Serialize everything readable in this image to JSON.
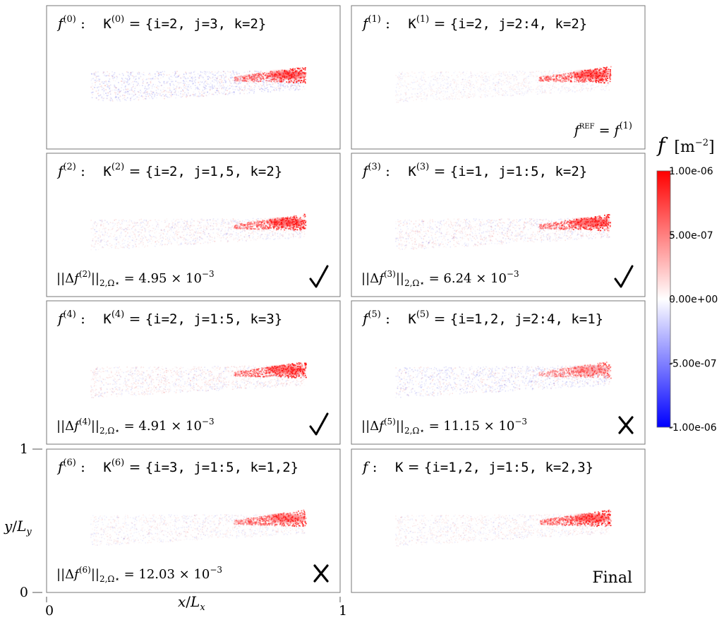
{
  "chart_data": {
    "type": "heatmap",
    "grid": [
      4,
      2
    ],
    "panels": [
      {
        "name": "f^(0)",
        "lhs": "f",
        "sup": "(0)",
        "kname": "K",
        "ksup": "(0)",
        "set": "{i=2, j=3, k=2}",
        "norm": "",
        "verdict": "",
        "note": "",
        "tail_intensity": 0.95,
        "body_intensity": 0.55,
        "body_bias": -0.25
      },
      {
        "name": "f^(1)",
        "lhs": "f",
        "sup": "(1)",
        "kname": "K",
        "ksup": "(1)",
        "set": "{i=2, j=2:4, k=2}",
        "norm": "",
        "verdict": "",
        "note": "f^REF = f^(1)",
        "tail_intensity": 1.0,
        "body_intensity": 0.25,
        "body_bias": 0.0
      },
      {
        "name": "f^(2)",
        "lhs": "f",
        "sup": "(2)",
        "kname": "K",
        "ksup": "(2)",
        "set": "{i=2, j=1,5, k=2}",
        "norm": "||Δf^(2)||_{2,Ω⋆} = 4.95 × 10^-3",
        "norm_sup": "(2)",
        "norm_val": "4.95",
        "verdict": "check",
        "note": "",
        "tail_intensity": 1.0,
        "body_intensity": 0.35,
        "body_bias": 0.1
      },
      {
        "name": "f^(3)",
        "lhs": "f",
        "sup": "(3)",
        "kname": "K",
        "ksup": "(3)",
        "set": "{i=1, j=1:5, k=2}",
        "norm": "||Δf^(3)||_{2,Ω⋆} = 6.24 × 10^-3",
        "norm_sup": "(3)",
        "norm_val": "6.24",
        "verdict": "check",
        "note": "",
        "tail_intensity": 1.0,
        "body_intensity": 0.4,
        "body_bias": 0.1
      },
      {
        "name": "f^(4)",
        "lhs": "f",
        "sup": "(4)",
        "kname": "K",
        "ksup": "(4)",
        "set": "{i=2, j=1:5, k=3}",
        "norm": "||Δf^(4)||_{2,Ω⋆} = 4.91 × 10^-3",
        "norm_sup": "(4)",
        "norm_val": "4.91",
        "verdict": "check",
        "note": "",
        "tail_intensity": 1.0,
        "body_intensity": 0.4,
        "body_bias": 0.15
      },
      {
        "name": "f^(5)",
        "lhs": "f",
        "sup": "(5)",
        "kname": "K",
        "ksup": "(5)",
        "set": "{i=1,2, j=2:4, k=1}",
        "norm": "||Δf^(5)||_{2,Ω⋆} = 11.15 × 10^-3",
        "norm_sup": "(5)",
        "norm_val": "11.15",
        "verdict": "cross",
        "note": "",
        "tail_intensity": 0.6,
        "body_intensity": 0.45,
        "body_bias": -0.2
      },
      {
        "name": "f^(6)",
        "lhs": "f",
        "sup": "(6)",
        "kname": "K",
        "ksup": "(6)",
        "set": "{i=3, j=1:5, k=1,2}",
        "norm": "||Δf^(6)||_{2,Ω⋆} = 12.03 × 10^-3",
        "norm_sup": "(6)",
        "norm_val": "12.03",
        "verdict": "cross",
        "note": "",
        "tail_intensity": 0.85,
        "body_intensity": 0.3,
        "body_bias": 0.05
      },
      {
        "name": "f",
        "lhs": "f",
        "sup": "",
        "kname": "K",
        "ksup": "",
        "set": "{i=1,2, j=1:5, k=2,3}",
        "norm": "",
        "verdict": "",
        "note": "Final",
        "tail_intensity": 1.0,
        "body_intensity": 0.3,
        "body_bias": 0.1
      }
    ],
    "colorbar": {
      "label": "f [m^-2]",
      "label_f": "f",
      "label_unit": "[m",
      "label_exp": "−2",
      "label_close": "]",
      "min": -1e-06,
      "max": 1e-06,
      "ticks": [
        "1.00e-06",
        "5.00e-07",
        "0.00e+00",
        "-5.00e-07",
        "-1.00e-06"
      ],
      "colors": {
        "low": "#0000ff",
        "mid": "#ffffff",
        "high": "#ff0000"
      }
    },
    "axes": {
      "xlabel": "x/L_x",
      "ylabel": "y/L_y",
      "xlim": [
        0,
        1
      ],
      "ylim": [
        0,
        1
      ],
      "xticks": [
        "0",
        "1"
      ],
      "yticks": [
        "0",
        "1"
      ]
    },
    "grid_lines": false
  }
}
